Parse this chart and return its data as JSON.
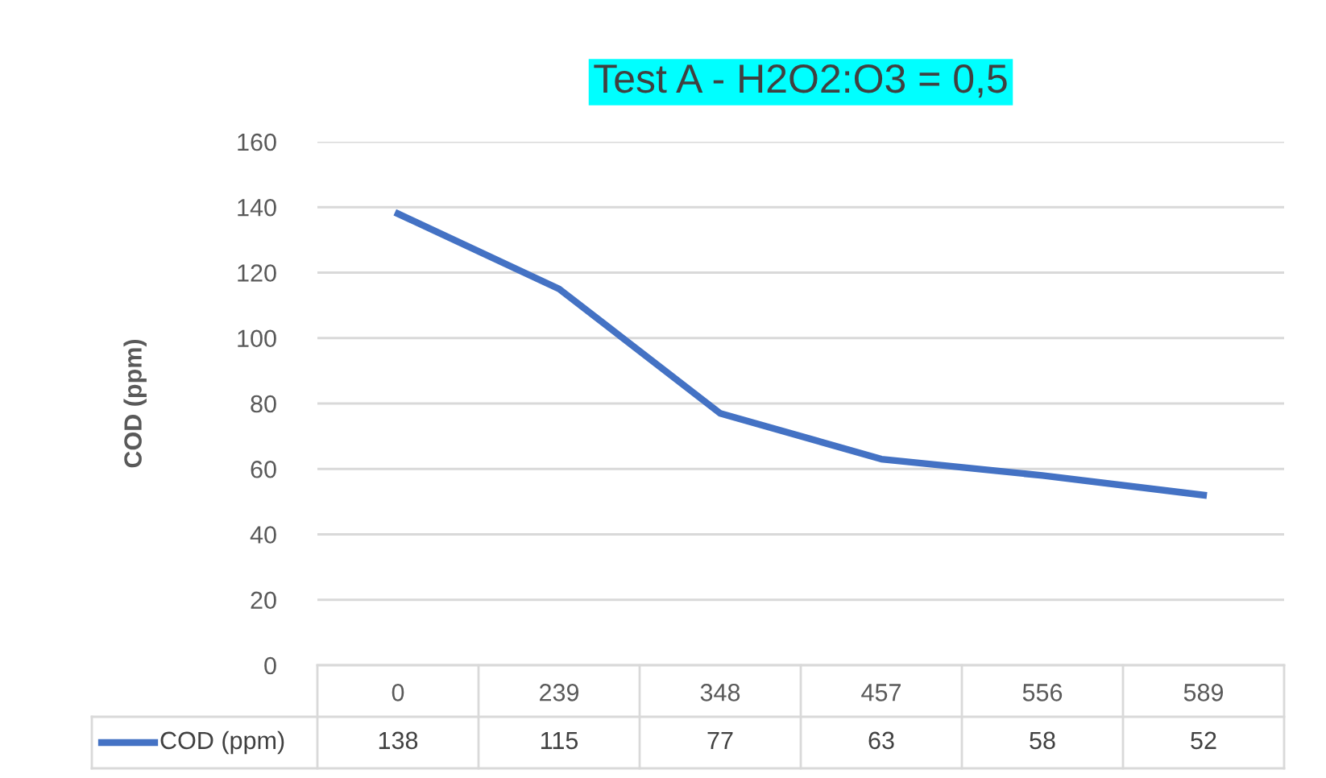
{
  "chart_data": {
    "type": "line",
    "title": "Test A - H2O2:O3 = 0,5",
    "ylabel": "COD (ppm)",
    "categories": [
      "0",
      "239",
      "348",
      "457",
      "556",
      "589"
    ],
    "series": [
      {
        "name": "COD (ppm)",
        "color": "#4472c4",
        "values": [
          138,
          115,
          77,
          63,
          58,
          52
        ]
      }
    ],
    "ylim": [
      0,
      160
    ],
    "yticks": [
      0,
      20,
      40,
      60,
      80,
      100,
      120,
      140,
      160
    ],
    "grid": "y",
    "data_labels": true,
    "marker": "none",
    "line_style": "solid"
  }
}
